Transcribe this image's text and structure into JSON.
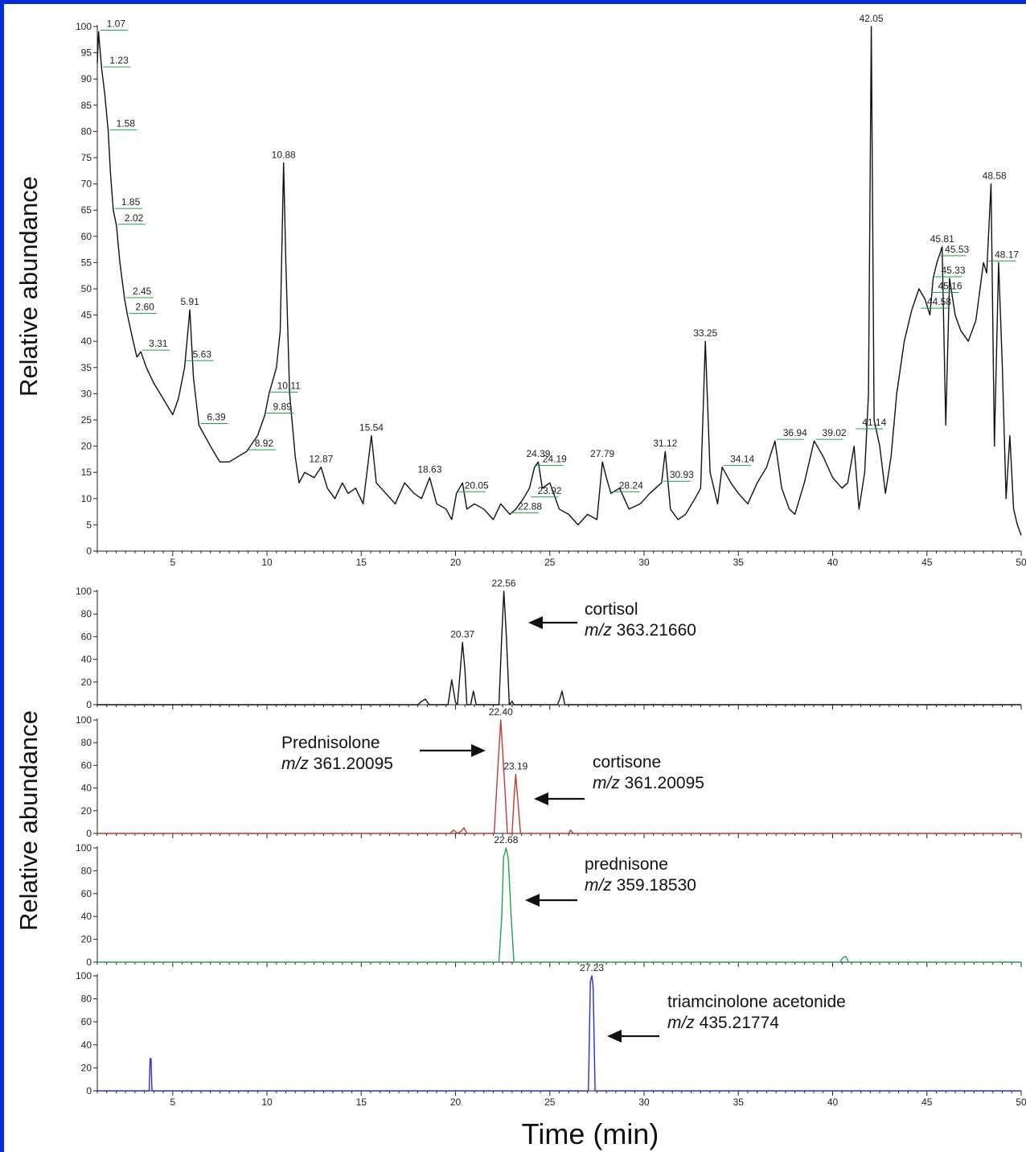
{
  "y_axis_label": "Relative abundance",
  "x_axis_label": "Time (min)",
  "colors": {
    "frame": "#0a2bd8",
    "tic": "#111111",
    "cortisol": "#111111",
    "red": "#c0392b",
    "green": "#21a34a",
    "blue": "#2b2bd8",
    "callout": "#19a34a"
  },
  "chart_data": [
    {
      "type": "line",
      "xlim": [
        1,
        50
      ],
      "ylim": [
        0,
        100
      ],
      "xticks": [
        5,
        10,
        15,
        20,
        25,
        30,
        35,
        40,
        45,
        50
      ],
      "xtick_labels": [
        "5",
        "10",
        "15",
        "20",
        "25",
        "30",
        "35",
        "40",
        "45",
        "50"
      ],
      "yticks": [
        0,
        5,
        10,
        15,
        20,
        25,
        30,
        35,
        40,
        45,
        50,
        55,
        60,
        65,
        70,
        75,
        80,
        85,
        90,
        95,
        100
      ],
      "ytick_labels": [
        "0",
        "5",
        "10",
        "15",
        "20",
        "25",
        "30",
        "35",
        "40",
        "45",
        "50",
        "55",
        "60",
        "65",
        "70",
        "75",
        "80",
        "85",
        "90",
        "95",
        "100"
      ],
      "series": [
        {
          "color": "#111111",
          "x": [
            1.0,
            1.07,
            1.23,
            1.4,
            1.58,
            1.7,
            1.85,
            2.02,
            2.2,
            2.45,
            2.6,
            2.9,
            3.1,
            3.31,
            3.6,
            4.0,
            4.5,
            5.0,
            5.3,
            5.63,
            5.91,
            6.1,
            6.39,
            7.0,
            7.5,
            8.0,
            8.92,
            9.5,
            9.89,
            10.11,
            10.5,
            10.7,
            10.88,
            11.0,
            11.2,
            11.5,
            11.7,
            12.0,
            12.5,
            12.87,
            13.2,
            13.6,
            14.0,
            14.3,
            14.7,
            15.1,
            15.54,
            15.8,
            16.3,
            16.8,
            17.3,
            17.8,
            18.2,
            18.63,
            19.0,
            19.5,
            19.8,
            20.05,
            20.37,
            20.6,
            21.0,
            21.5,
            22.0,
            22.4,
            22.88,
            23.2,
            23.6,
            23.92,
            24.19,
            24.39,
            24.6,
            25.0,
            25.5,
            26.0,
            26.5,
            27.0,
            27.5,
            27.79,
            28.0,
            28.24,
            28.7,
            29.2,
            29.8,
            30.3,
            30.93,
            31.12,
            31.4,
            31.8,
            32.2,
            32.7,
            33.0,
            33.25,
            33.5,
            33.9,
            34.14,
            34.6,
            35.0,
            35.5,
            36.0,
            36.5,
            36.94,
            37.3,
            37.7,
            38.0,
            38.5,
            39.02,
            39.5,
            40.0,
            40.5,
            40.8,
            41.14,
            41.4,
            41.7,
            41.9,
            42.05,
            42.2,
            42.5,
            42.8,
            43.1,
            43.4,
            43.8,
            44.2,
            44.58,
            44.9,
            45.16,
            45.33,
            45.53,
            45.81,
            46.0,
            46.2,
            46.5,
            46.8,
            47.2,
            47.6,
            48.0,
            48.17,
            48.4,
            48.58,
            48.8,
            49.0,
            49.2,
            49.4,
            49.6,
            49.8,
            50.0
          ],
          "y": [
            93,
            99,
            92,
            87,
            80,
            72,
            65,
            62,
            55,
            48,
            45,
            40,
            37,
            38,
            35,
            32,
            29,
            26,
            29,
            35,
            46,
            33,
            24,
            20,
            17,
            17,
            19,
            22,
            26,
            30,
            35,
            42,
            74,
            55,
            30,
            18,
            13,
            15,
            14,
            16,
            12,
            10,
            13,
            11,
            12,
            9,
            22,
            13,
            11,
            9,
            13,
            11,
            10,
            14,
            9,
            8,
            6,
            11,
            13,
            8,
            9,
            8,
            6,
            9,
            7,
            8,
            10,
            12,
            16,
            17,
            12,
            13,
            8,
            7,
            5,
            7,
            6,
            17,
            14,
            11,
            12,
            8,
            9,
            11,
            13,
            19,
            8,
            6,
            7,
            10,
            12,
            40,
            15,
            9,
            16,
            13,
            11,
            9,
            13,
            16,
            21,
            12,
            8,
            7,
            13,
            21,
            18,
            14,
            12,
            13,
            20,
            8,
            15,
            30,
            100,
            25,
            20,
            11,
            18,
            30,
            40,
            46,
            50,
            48,
            45,
            52,
            55,
            58,
            24,
            52,
            45,
            42,
            40,
            44,
            55,
            53,
            70,
            20,
            55,
            35,
            10,
            22,
            8,
            5,
            3
          ]
        }
      ],
      "peak_labels": [
        {
          "x": 1.07,
          "y": 99,
          "text": "1.07",
          "callout": true
        },
        {
          "x": 1.23,
          "y": 92,
          "text": "1.23",
          "callout": true
        },
        {
          "x": 1.58,
          "y": 80,
          "text": "1.58",
          "callout": true
        },
        {
          "x": 1.85,
          "y": 65,
          "text": "1.85",
          "callout": true
        },
        {
          "x": 2.02,
          "y": 62,
          "text": "2.02",
          "callout": true
        },
        {
          "x": 2.45,
          "y": 48,
          "text": "2.45",
          "callout": true
        },
        {
          "x": 2.6,
          "y": 45,
          "text": "2.60",
          "callout": true
        },
        {
          "x": 3.31,
          "y": 38,
          "text": "3.31",
          "callout": true
        },
        {
          "x": 5.63,
          "y": 36,
          "text": "5.63",
          "callout": true
        },
        {
          "x": 5.91,
          "y": 46,
          "text": "5.91",
          "callout": false
        },
        {
          "x": 6.39,
          "y": 24,
          "text": "6.39",
          "callout": true
        },
        {
          "x": 8.92,
          "y": 19,
          "text": "8.92",
          "callout": true
        },
        {
          "x": 9.89,
          "y": 26,
          "text": "9.89",
          "callout": true
        },
        {
          "x": 10.11,
          "y": 30,
          "text": "10.11",
          "callout": true
        },
        {
          "x": 10.88,
          "y": 74,
          "text": "10.88",
          "callout": false
        },
        {
          "x": 12.87,
          "y": 16,
          "text": "12.87",
          "callout": false
        },
        {
          "x": 15.54,
          "y": 22,
          "text": "15.54",
          "callout": false
        },
        {
          "x": 18.63,
          "y": 14,
          "text": "18.63",
          "callout": false
        },
        {
          "x": 20.05,
          "y": 11,
          "text": "20.05",
          "callout": true
        },
        {
          "x": 22.88,
          "y": 7,
          "text": "22.88",
          "callout": true
        },
        {
          "x": 23.92,
          "y": 10,
          "text": "23.92",
          "callout": true
        },
        {
          "x": 24.19,
          "y": 16,
          "text": "24.19",
          "callout": true
        },
        {
          "x": 24.39,
          "y": 17,
          "text": "24.39",
          "callout": false
        },
        {
          "x": 27.79,
          "y": 17,
          "text": "27.79",
          "callout": false
        },
        {
          "x": 28.24,
          "y": 11,
          "text": "28.24",
          "callout": true
        },
        {
          "x": 30.93,
          "y": 13,
          "text": "30.93",
          "callout": true
        },
        {
          "x": 31.12,
          "y": 19,
          "text": "31.12",
          "callout": false
        },
        {
          "x": 33.25,
          "y": 40,
          "text": "33.25",
          "callout": false
        },
        {
          "x": 34.14,
          "y": 16,
          "text": "34.14",
          "callout": true
        },
        {
          "x": 36.94,
          "y": 21,
          "text": "36.94",
          "callout": true
        },
        {
          "x": 39.02,
          "y": 21,
          "text": "39.02",
          "callout": true
        },
        {
          "x": 41.14,
          "y": 23,
          "text": "41.14",
          "callout": true
        },
        {
          "x": 42.05,
          "y": 100,
          "text": "42.05",
          "callout": false
        },
        {
          "x": 44.58,
          "y": 46,
          "text": "44.58",
          "callout": true
        },
        {
          "x": 45.16,
          "y": 49,
          "text": "45.16",
          "callout": true
        },
        {
          "x": 45.33,
          "y": 52,
          "text": "45.33",
          "callout": true
        },
        {
          "x": 45.53,
          "y": 56,
          "text": "45.53",
          "callout": true
        },
        {
          "x": 45.81,
          "y": 58,
          "text": "45.81",
          "callout": false
        },
        {
          "x": 48.17,
          "y": 55,
          "text": "48.17",
          "callout": true
        },
        {
          "x": 48.58,
          "y": 70,
          "text": "48.58",
          "callout": false
        }
      ]
    },
    {
      "type": "line",
      "xlim": [
        1,
        50
      ],
      "ylim": [
        0,
        100
      ],
      "yticks": [
        0,
        20,
        40,
        60,
        80,
        100
      ],
      "ytick_labels": [
        "0",
        "20",
        "40",
        "60",
        "80",
        "100"
      ],
      "series": [
        {
          "color": "#111111",
          "x": [
            1,
            18.0,
            18.2,
            18.4,
            18.6,
            19.6,
            19.8,
            20.0,
            20.1,
            20.25,
            20.37,
            20.5,
            20.6,
            20.8,
            20.95,
            21.1,
            22.3,
            22.45,
            22.56,
            22.7,
            22.85,
            23.0,
            23.1,
            23.3,
            25.4,
            25.55,
            25.65,
            25.8,
            50
          ],
          "y": [
            0,
            0,
            3,
            5,
            0,
            0,
            22,
            2,
            0,
            30,
            55,
            30,
            0,
            0,
            12,
            0,
            0,
            60,
            100,
            60,
            0,
            3,
            0,
            0,
            0,
            6,
            12,
            0,
            0
          ]
        }
      ],
      "peak_labels": [
        {
          "x": 20.37,
          "y": 55,
          "text": "20.37"
        },
        {
          "x": 22.56,
          "y": 100,
          "text": "22.56"
        }
      ],
      "annotation": {
        "name": "cortisol",
        "mz_prefix": "m/z",
        "mz_value": " 363.21660"
      }
    },
    {
      "type": "line",
      "xlim": [
        1,
        50
      ],
      "ylim": [
        0,
        100
      ],
      "yticks": [
        0,
        20,
        40,
        60,
        80,
        100
      ],
      "ytick_labels": [
        "0",
        "20",
        "40",
        "60",
        "80",
        "100"
      ],
      "series": [
        {
          "color": "#c0392b",
          "x": [
            1,
            19.7,
            19.9,
            20.1,
            20.3,
            20.45,
            20.6,
            22.05,
            22.2,
            22.4,
            22.6,
            22.75,
            23.0,
            23.1,
            23.19,
            23.3,
            23.45,
            26.0,
            26.1,
            26.25,
            50
          ],
          "y": [
            0,
            0,
            3,
            0,
            2,
            5,
            0,
            0,
            45,
            100,
            45,
            0,
            0,
            30,
            52,
            30,
            0,
            0,
            3,
            0,
            0
          ]
        }
      ],
      "peak_labels": [
        {
          "x": 22.4,
          "y": 100,
          "text": "22.40"
        },
        {
          "x": 23.19,
          "y": 52,
          "text": "23.19"
        }
      ],
      "annotation_left": {
        "name": "Prednisolone",
        "mz_prefix": "m/z",
        "mz_value": " 361.20095"
      },
      "annotation": {
        "name": "cortisone",
        "mz_prefix": "m/z",
        "mz_value": " 361.20095"
      }
    },
    {
      "type": "line",
      "xlim": [
        1,
        50
      ],
      "ylim": [
        0,
        100
      ],
      "yticks": [
        0,
        20,
        40,
        60,
        80,
        100
      ],
      "ytick_labels": [
        "0",
        "20",
        "40",
        "60",
        "80",
        "100"
      ],
      "series": [
        {
          "color": "#21a34a",
          "x": [
            1,
            22.3,
            22.45,
            22.55,
            22.68,
            22.8,
            22.95,
            23.1,
            40.4,
            40.55,
            40.7,
            40.85,
            50
          ],
          "y": [
            0,
            0,
            40,
            92,
            100,
            90,
            40,
            0,
            0,
            4,
            5,
            0,
            0
          ]
        }
      ],
      "peak_labels": [
        {
          "x": 22.68,
          "y": 100,
          "text": "22.68"
        }
      ],
      "annotation": {
        "name": "prednisone",
        "mz_prefix": "m/z",
        "mz_value": " 359.18530"
      }
    },
    {
      "type": "line",
      "xlim": [
        1,
        50
      ],
      "ylim": [
        0,
        100
      ],
      "yticks": [
        0,
        20,
        40,
        60,
        80,
        100
      ],
      "ytick_labels": [
        "0",
        "20",
        "40",
        "60",
        "80",
        "100"
      ],
      "xticks": [
        5,
        10,
        15,
        20,
        25,
        30,
        35,
        40,
        45,
        50
      ],
      "xtick_labels": [
        "5",
        "10",
        "15",
        "20",
        "25",
        "30",
        "35",
        "40",
        "45",
        "50"
      ],
      "series": [
        {
          "color": "#2b2bd8",
          "x": [
            1,
            3.75,
            3.8,
            3.85,
            3.9,
            27.05,
            27.15,
            27.23,
            27.3,
            27.4,
            50
          ],
          "y": [
            0,
            0,
            28,
            28,
            0,
            0,
            95,
            100,
            90,
            0,
            0
          ]
        }
      ],
      "peak_labels": [
        {
          "x": 27.23,
          "y": 100,
          "text": "27.23"
        }
      ],
      "annotation": {
        "name": "triamcinolone acetonide",
        "mz_prefix": "m/z",
        "mz_value": " 435.21774"
      }
    }
  ]
}
